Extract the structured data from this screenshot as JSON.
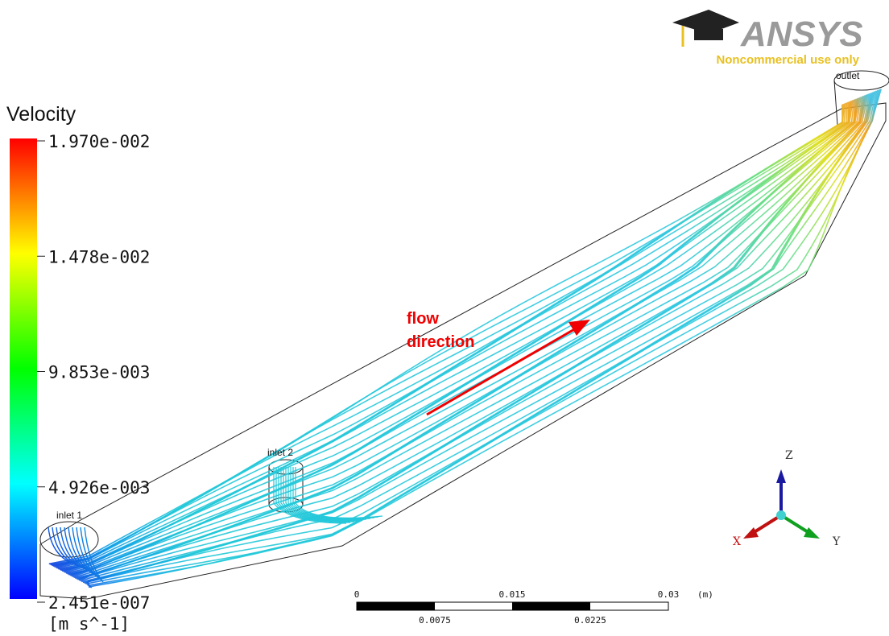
{
  "logo": {
    "brand": "ANSYS",
    "notice": "Noncommercial use only"
  },
  "legend": {
    "title": "Velocity",
    "labels": [
      "1.970e-002",
      "1.478e-002",
      "9.853e-003",
      "4.926e-003",
      "2.451e-007"
    ],
    "unit": "[m s^-1]"
  },
  "labels": {
    "inlet_1": "inlet 1",
    "inlet_2": "inlet 2",
    "outlet": "outlet"
  },
  "annotation": {
    "line1": "flow",
    "line2": "direction"
  },
  "scale_bar": {
    "labels_top": [
      "0",
      "0.015",
      "0.03"
    ],
    "labels_bottom": [
      "0.0075",
      "0.0225"
    ],
    "unit": "(m)"
  },
  "axes": {
    "x": "X",
    "y": "Y",
    "z": "Z"
  }
}
